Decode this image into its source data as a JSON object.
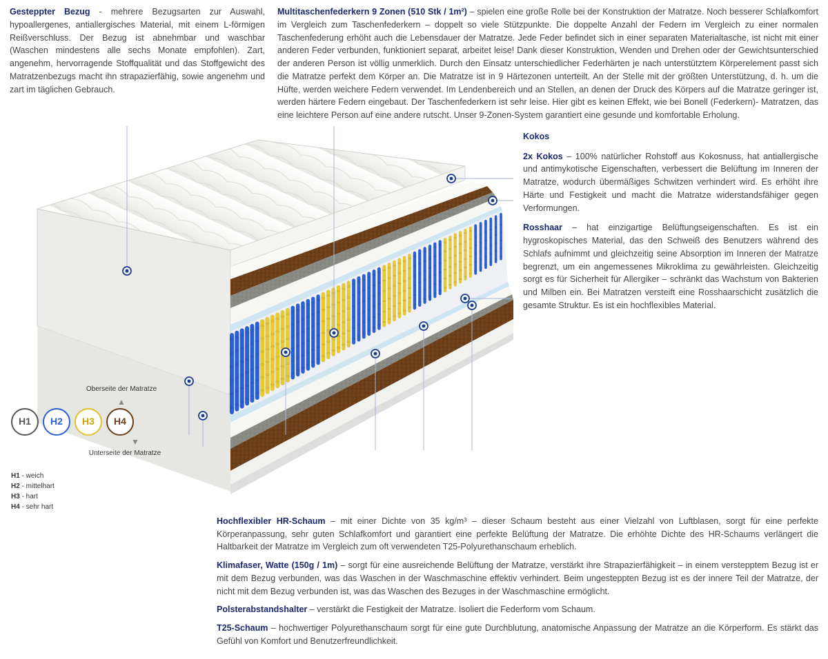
{
  "top": {
    "left": {
      "title": "Gesteppter Bezug",
      "body": "- mehrere Bezugsarten zur Auswahl, hypoallergenes, antiallergisches Material, mit einem L-förmigen Reißverschluss. Der Bezug ist abnehmbar und waschbar (Waschen mindestens alle sechs Monate empfohlen). Zart, angenehm, hervorragende Stoffqualität und das Stoffgewicht des Matratzenbezugs macht ihn strapazierfähig, sowie angenehm und zart im täglichen Gebrauch."
    },
    "right": {
      "title": "Multitaschenfederkern 9 Zonen (510 Stk / 1m²)",
      "body": "– spielen eine große Rolle bei der Konstruktion der Matratze. Noch besserer Schlafkomfort im Vergleich zum Taschenfederkern – doppelt so viele Stützpunkte. Die doppelte Anzahl der Federn im Vergleich zu einer normalen Taschenfederung erhöht auch die Lebensdauer der Matratze. Jede Feder befindet sich in einer separaten Materialtasche, ist nicht mit einer anderen Feder verbunden, funktioniert separat, arbeitet leise! Dank dieser Konstruktion, Wenden und Drehen oder der Gewichtsunterschied der anderen Person ist völlig unmerklich. Durch den Einsatz unterschiedlicher Federhärten je nach unterstütztem Körperelement passt sich die Matratze perfekt dem Körper an. Die Matratze ist in 9 Härtezonen unterteilt. An der Stelle mit der größten Unterstützung, d. h. um die Hüfte, werden weichere Federn verwendet. Im Lendenbereich und an Stellen, an denen der Druck des Körpers auf die Matratze geringer ist, werden härtere Federn eingebaut. Der Taschenfederkern ist sehr leise. Hier gibt es keinen Effekt, wie bei Bonell (Federkern)- Matratzen, das eine leichtere Person auf eine andere rutscht. Unser 9-Zonen-System garantiert eine gesunde und komfortable Erholung."
    }
  },
  "right_callouts": [
    {
      "title": "Kokos",
      "body": ""
    },
    {
      "title": "2x Kokos",
      "body": "– 100% natürlicher Rohstoff aus Kokosnuss, hat antiallergische und antimykotische Eigenschaften, verbessert die Belüftung im Inneren der Matratze, wodurch übermäßiges Schwitzen verhindert wird. Es erhöht ihre Härte und Festigkeit und macht die Matratze widerstandsfähiger gegen Verformungen."
    },
    {
      "title": "Rosshaar",
      "body": "– hat einzigartige Belüftungseigenschaften. Es ist ein hygroskopisches Material, das den Schweiß des Benutzers während des Schlafs aufnimmt und gleichzeitig seine Absorption im Inneren der Matratze begrenzt, um ein angemessenes Mikroklima zu gewährleisten. Gleichzeitig sorgt es für Sicherheit für Allergiker – schränkt das Wachstum von Bakterien und Milben ein. Bei Matratzen versteift eine Rosshaarschicht zusätzlich die gesamte Struktur. Es ist ein hochflexibles Material."
    }
  ],
  "bottom_callouts": [
    {
      "title": "Hochflexibler HR-Schaum",
      "body": "– mit einer Dichte von 35 kg/m³ – dieser Schaum besteht aus einer Vielzahl von Luftblasen, sorgt für eine perfekte Körperanpassung, sehr guten Schlafkomfort und garantiert eine perfekte Belüftung der Matratze. Die erhöhte Dichte des HR-Schaums verlängert die Haltbarkeit der Matratze im Vergleich zum oft verwendeten T25-Polyurethanschaum erheblich."
    },
    {
      "title": "Klimafaser, Watte (150g / 1m)",
      "body": "– sorgt für eine ausreichende Belüftung der Matratze, verstärkt ihre Strapazierfähigkeit – in einem verstepptem Bezug ist er mit dem Bezug verbunden, was das Waschen in der Waschmaschine effektiv verhindert. Beim ungesteppten Bezug ist es der innere Teil der Matratze, der nicht mit dem Bezug verbunden ist, was das Waschen des Bezuges in der Waschmaschine ermöglicht."
    },
    {
      "title": "Polsterabstandshalter",
      "body": "– verstärkt die Festigkeit der Matratze. Isoliert die Federform vom Schaum."
    },
    {
      "title": "T25-Schaum",
      "body": "– hochwertiger Polyurethanschaum sorgt für eine gute Durchblutung, anatomische Anpassung der Matratze an die Körperform. Es stärkt das Gefühl von Komfort und Benutzerfreundlichkeit."
    }
  ],
  "hardness": {
    "top_label": "Oberseite der Matratze",
    "bottom_label": "Unterseite der Matratze",
    "circles": [
      "H1",
      "H2",
      "H3",
      "H4"
    ],
    "circle_colors": [
      "#555555",
      "#2a5fd6",
      "#e0c22c",
      "#6a3e1a"
    ],
    "legend": [
      {
        "k": "H1",
        "v": "- weich"
      },
      {
        "k": "H2",
        "v": "- mittelhart"
      },
      {
        "k": "H3",
        "v": "- hart"
      },
      {
        "k": "H4",
        "v": "- sehr hart"
      }
    ]
  },
  "mattress": {
    "cover_color": "#f4f4f1",
    "cover_shadow": "#dcdcd8",
    "kokos_color": "#6b3e1a",
    "rosshaar_color": "#8a8a84",
    "hr_foam_color": "#f6f6f3",
    "spacer_color": "#cfe6f2",
    "t25_color": "#e9e9e6",
    "spring_blue": "#2a5fd6",
    "spring_yellow": "#e8c92e",
    "zones": [
      "blue",
      "yellow",
      "blue",
      "yellow",
      "blue",
      "yellow",
      "blue",
      "yellow",
      "blue"
    ],
    "marker_color": "#1a3a8a",
    "leader_color": "#a9b5d3"
  }
}
